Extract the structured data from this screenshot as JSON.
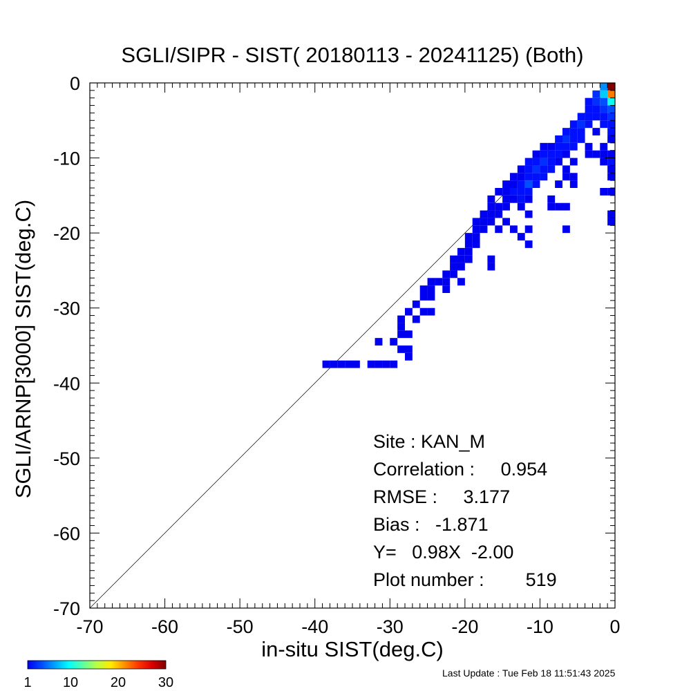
{
  "chart_data": {
    "type": "heatmap",
    "title": "SGLI/SIPR - SIST( 20180113 - 20241125) (Both)",
    "xlabel": "in-situ SIST(deg.C)",
    "ylabel": "SGLI/ARNP[3000]     SIST(deg.C)",
    "xlim": [
      -70,
      0
    ],
    "ylim": [
      -70,
      0
    ],
    "x_ticks": [
      -70,
      -60,
      -50,
      -40,
      -30,
      -20,
      -10,
      0
    ],
    "y_ticks": [
      -70,
      -60,
      -50,
      -40,
      -30,
      -20,
      -10,
      0
    ],
    "bin_size": 1,
    "identity_line": true,
    "colorbar": {
      "min": 1,
      "max": 30,
      "ticks": [
        1,
        10,
        20,
        30
      ],
      "colormap": "jet"
    },
    "stats": [
      {
        "label": "Site : KAN_M"
      },
      {
        "label": "Correlation :     0.954"
      },
      {
        "label": "RMSE :     3.177"
      },
      {
        "label": "Bias :   -1.871"
      },
      {
        "label": "Y=   0.98X  -2.00"
      },
      {
        "label": "Plot number :        519"
      }
    ],
    "points": [
      [
        -0.5,
        -0.5,
        30
      ],
      [
        -0.5,
        -1.5,
        22
      ],
      [
        -1.5,
        -0.5,
        6
      ],
      [
        -1.5,
        -1.5,
        8
      ],
      [
        -2.5,
        -1.5,
        3
      ],
      [
        -0.5,
        -2.5,
        10
      ],
      [
        -1.5,
        -2.5,
        4
      ],
      [
        -2.5,
        -2.5,
        3
      ],
      [
        -3.5,
        -2.5,
        2
      ],
      [
        -0.5,
        -3.5,
        4
      ],
      [
        -1.5,
        -3.5,
        3
      ],
      [
        -2.5,
        -3.5,
        2
      ],
      [
        -3.5,
        -3.5,
        2
      ],
      [
        -0.5,
        -4.5,
        3
      ],
      [
        -1.5,
        -4.5,
        2
      ],
      [
        -2.5,
        -4.5,
        2
      ],
      [
        -3.5,
        -4.5,
        2
      ],
      [
        -4.5,
        -4.5,
        2
      ],
      [
        -0.5,
        -5.5,
        2
      ],
      [
        -1.5,
        -5.5,
        2
      ],
      [
        -3.5,
        -5.5,
        2
      ],
      [
        -4.5,
        -5.5,
        3
      ],
      [
        -5.5,
        -5.5,
        2
      ],
      [
        -0.5,
        -6.5,
        2
      ],
      [
        -2.5,
        -6.5,
        1
      ],
      [
        -4.5,
        -6.5,
        2
      ],
      [
        -5.5,
        -6.5,
        2
      ],
      [
        -6.5,
        -6.5,
        2
      ],
      [
        -0.5,
        -7.5,
        1
      ],
      [
        -4.5,
        -7.5,
        2
      ],
      [
        -5.5,
        -7.5,
        2
      ],
      [
        -6.5,
        -7.5,
        3
      ],
      [
        -7.5,
        -7.5,
        2
      ],
      [
        -1.5,
        -8.5,
        1
      ],
      [
        -3.5,
        -8.5,
        1
      ],
      [
        -5.5,
        -8.5,
        2
      ],
      [
        -6.5,
        -8.5,
        2
      ],
      [
        -7.5,
        -8.5,
        2
      ],
      [
        -8.5,
        -8.5,
        1
      ],
      [
        -9.5,
        -8.5,
        1
      ],
      [
        -0.5,
        -9.5,
        1
      ],
      [
        -6.5,
        -9.5,
        1
      ],
      [
        -7.5,
        -9.5,
        2
      ],
      [
        -8.5,
        -9.5,
        2
      ],
      [
        -9.5,
        -9.5,
        2
      ],
      [
        -10.5,
        -9.5,
        1
      ],
      [
        -0.5,
        -10.5,
        2
      ],
      [
        -1.5,
        -10.5,
        1
      ],
      [
        -5.5,
        -10.5,
        1
      ],
      [
        -7.5,
        -10.5,
        1
      ],
      [
        -8.5,
        -10.5,
        2
      ],
      [
        -9.5,
        -10.5,
        3
      ],
      [
        -10.5,
        -10.5,
        2
      ],
      [
        -11.5,
        -10.5,
        2
      ],
      [
        -0.5,
        -11.5,
        1
      ],
      [
        -6.5,
        -11.5,
        1
      ],
      [
        -8.5,
        -11.5,
        2
      ],
      [
        -9.5,
        -11.5,
        2
      ],
      [
        -10.5,
        -11.5,
        3
      ],
      [
        -11.5,
        -11.5,
        2
      ],
      [
        -12.5,
        -11.5,
        1
      ],
      [
        -0.5,
        -12.5,
        1
      ],
      [
        -5.5,
        -12.5,
        1
      ],
      [
        -9.5,
        -12.5,
        2
      ],
      [
        -10.5,
        -12.5,
        2
      ],
      [
        -11.5,
        -12.5,
        2
      ],
      [
        -12.5,
        -12.5,
        1
      ],
      [
        -13.5,
        -12.5,
        1
      ],
      [
        -5.5,
        -13.5,
        1
      ],
      [
        -10.5,
        -13.5,
        2
      ],
      [
        -11.5,
        -13.5,
        4
      ],
      [
        -12.5,
        -13.5,
        2
      ],
      [
        -13.5,
        -13.5,
        1
      ],
      [
        -14.5,
        -13.5,
        1
      ],
      [
        -0.5,
        -14.5,
        1
      ],
      [
        -1.5,
        -14.5,
        1
      ],
      [
        -11.5,
        -14.5,
        2
      ],
      [
        -12.5,
        -14.5,
        2
      ],
      [
        -13.5,
        -14.5,
        2
      ],
      [
        -14.5,
        -14.5,
        1
      ],
      [
        -15.5,
        -14.5,
        1
      ],
      [
        -11.5,
        -15.5,
        1
      ],
      [
        -12.5,
        -15.5,
        2
      ],
      [
        -13.5,
        -15.5,
        1
      ],
      [
        -14.5,
        -15.5,
        1
      ],
      [
        -16.5,
        -15.5,
        1
      ],
      [
        -8.5,
        -15.5,
        1
      ],
      [
        -12.5,
        -16.5,
        1
      ],
      [
        -14.5,
        -16.5,
        1
      ],
      [
        -15.5,
        -16.5,
        1
      ],
      [
        -16.5,
        -16.5,
        1
      ],
      [
        -8.5,
        -16.5,
        1
      ],
      [
        -7.5,
        -16.5,
        1
      ],
      [
        -6.5,
        -16.5,
        1
      ],
      [
        -15.5,
        -17.5,
        1
      ],
      [
        -16.5,
        -17.5,
        1
      ],
      [
        -17.5,
        -17.5,
        1
      ],
      [
        -0.5,
        -17.5,
        1
      ],
      [
        -11.5,
        -17.5,
        1
      ],
      [
        -16.5,
        -18.5,
        1
      ],
      [
        -17.5,
        -18.5,
        1
      ],
      [
        -18.5,
        -18.5,
        1
      ],
      [
        -14.5,
        -18.5,
        1
      ],
      [
        -0.5,
        -18.5,
        1
      ],
      [
        -17.5,
        -19.5,
        1
      ],
      [
        -18.5,
        -19.5,
        1
      ],
      [
        -15.5,
        -19.5,
        1
      ],
      [
        -13.5,
        -19.5,
        1
      ],
      [
        -11.5,
        -19.5,
        1
      ],
      [
        -6.5,
        -19.5,
        1
      ],
      [
        -18.5,
        -20.5,
        1
      ],
      [
        -19.5,
        -20.5,
        1
      ],
      [
        -12.5,
        -20.5,
        1
      ],
      [
        -18.5,
        -21.5,
        1
      ],
      [
        -19.5,
        -21.5,
        1
      ],
      [
        -11.5,
        -21.5,
        1
      ],
      [
        -19.5,
        -22.5,
        1
      ],
      [
        -20.5,
        -22.5,
        1
      ],
      [
        -19.5,
        -23.5,
        1
      ],
      [
        -20.5,
        -23.5,
        1
      ],
      [
        -21.5,
        -23.5,
        1
      ],
      [
        -16.5,
        -23.5,
        1
      ],
      [
        -20.5,
        -24.5,
        1
      ],
      [
        -21.5,
        -24.5,
        1
      ],
      [
        -21.5,
        -25.5,
        1
      ],
      [
        -22.5,
        -25.5,
        1
      ],
      [
        -16.5,
        -24.5,
        1
      ],
      [
        -22.5,
        -26.5,
        1
      ],
      [
        -23.5,
        -26.5,
        1
      ],
      [
        -24.5,
        -26.5,
        1
      ],
      [
        -20.5,
        -26.5,
        1
      ],
      [
        -22.5,
        -27.5,
        1
      ],
      [
        -24.5,
        -27.5,
        1
      ],
      [
        -25.5,
        -27.5,
        1
      ],
      [
        -24.5,
        -28.5,
        1
      ],
      [
        -25.5,
        -28.5,
        1
      ],
      [
        -26.5,
        -29.5,
        1
      ],
      [
        -25.5,
        -30.5,
        1
      ],
      [
        -24.5,
        -30.5,
        1
      ],
      [
        -27.5,
        -30.5,
        1
      ],
      [
        -28.5,
        -31.5,
        1
      ],
      [
        -28.5,
        -32.5,
        1
      ],
      [
        -26.5,
        -31.5,
        1
      ],
      [
        -28.5,
        -33.5,
        1
      ],
      [
        -27.5,
        -33.5,
        1
      ],
      [
        -31.5,
        -34.5,
        1
      ],
      [
        -29.5,
        -34.5,
        1
      ],
      [
        -28.5,
        -35.5,
        1
      ],
      [
        -27.5,
        -35.5,
        1
      ],
      [
        -31.5,
        -37.5,
        1
      ],
      [
        -30.5,
        -37.5,
        1
      ],
      [
        -29.5,
        -37.5,
        1
      ],
      [
        -32.5,
        -37.5,
        1
      ],
      [
        -27.5,
        -36.5,
        1
      ],
      [
        -35.5,
        -37.5,
        1
      ],
      [
        -36.5,
        -37.5,
        1
      ],
      [
        -37.5,
        -37.5,
        1
      ],
      [
        -38.5,
        -37.5,
        1
      ],
      [
        -34.5,
        -37.5,
        1
      ],
      [
        -2.5,
        -9.5,
        1
      ],
      [
        -6.5,
        -12.5,
        1
      ],
      [
        -7.5,
        -13.5,
        1
      ],
      [
        -3.5,
        -9.5,
        1
      ],
      [
        -1.5,
        -9.5,
        1
      ]
    ]
  },
  "footer": {
    "last_update": "Last Update : Tue Feb 18 11:51:43 2025"
  }
}
